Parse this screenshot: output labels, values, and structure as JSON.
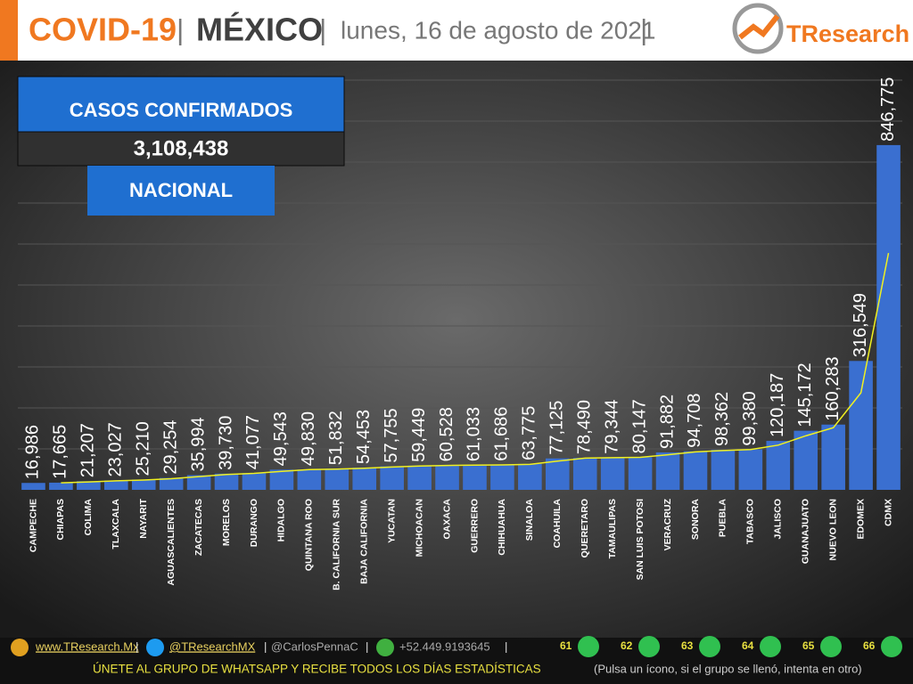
{
  "header": {
    "title": "COVID-19",
    "country": "MÉXICO",
    "date": "lunes, 16 de agosto de 2021",
    "separator": "|",
    "logo": "TResearch"
  },
  "summary": {
    "label": "CASOS CONFIRMADOS",
    "value": "3,108,438",
    "scope": "NACIONAL"
  },
  "chart_data": {
    "type": "bar",
    "color": "#3a6fd0",
    "categories": [
      "CAMPECHE",
      "CHIAPAS",
      "COLIMA",
      "TLAXCALA",
      "NAYARIT",
      "AGUASCALIENTES",
      "ZACATECAS",
      "MORELOS",
      "DURANGO",
      "HIDALGO",
      "QUINTANA ROO",
      "B. CALIFORNIA SUR",
      "BAJA CALIFORNIA",
      "YUCATAN",
      "MICHOACAN",
      "OAXACA",
      "GUERRERO",
      "CHIHUAHUA",
      "SINALOA",
      "COAHUILA",
      "QUERETARO",
      "TAMAULIPAS",
      "SAN LUIS POTOSI",
      "VERACRUZ",
      "SONORA",
      "PUEBLA",
      "TABASCO",
      "JALISCO",
      "GUANAJUATO",
      "NUEVO LEON",
      "EDOMEX",
      "CDMX"
    ],
    "values": [
      16986,
      17665,
      21207,
      23027,
      25210,
      29254,
      35994,
      39730,
      41077,
      49543,
      49830,
      51832,
      54453,
      57755,
      59449,
      60528,
      61033,
      61686,
      63775,
      77125,
      78490,
      79344,
      80147,
      91882,
      94708,
      98362,
      99380,
      120187,
      145172,
      160283,
      316549,
      846775
    ],
    "value_labels": [
      "16,986",
      "17,665",
      "21,207",
      "23,027",
      "25,210",
      "29,254",
      "35,994",
      "39,730",
      "41,077",
      "49,543",
      "49,830",
      "51,832",
      "54,453",
      "57,755",
      "59,449",
      "60,528",
      "61,033",
      "61,686",
      "63,775",
      "77,125",
      "78,490",
      "79,344",
      "80,147",
      "91,882",
      "94,708",
      "98,362",
      "99,380",
      "120,187",
      "145,172",
      "160,283",
      "316,549",
      "846,775"
    ],
    "ylim": [
      0,
      1050000
    ],
    "trendline": {
      "period": 2,
      "color": "#f0f020"
    }
  },
  "footer": {
    "web": "www.TResearch.Mx",
    "twitter": "@TResearchMX",
    "author": "@CarlosPennaC",
    "phone": "+52.449.9193645",
    "separator": "|",
    "groups": [
      "61",
      "62",
      "63",
      "64",
      "65",
      "66"
    ],
    "call": "ÚNETE AL GRUPO DE WHATSAPP Y RECIBE TODOS LOS DÍAS ESTADÍSTICAS",
    "note": "(Pulsa un ícono, si el grupo se llenó, intenta en otro)"
  }
}
